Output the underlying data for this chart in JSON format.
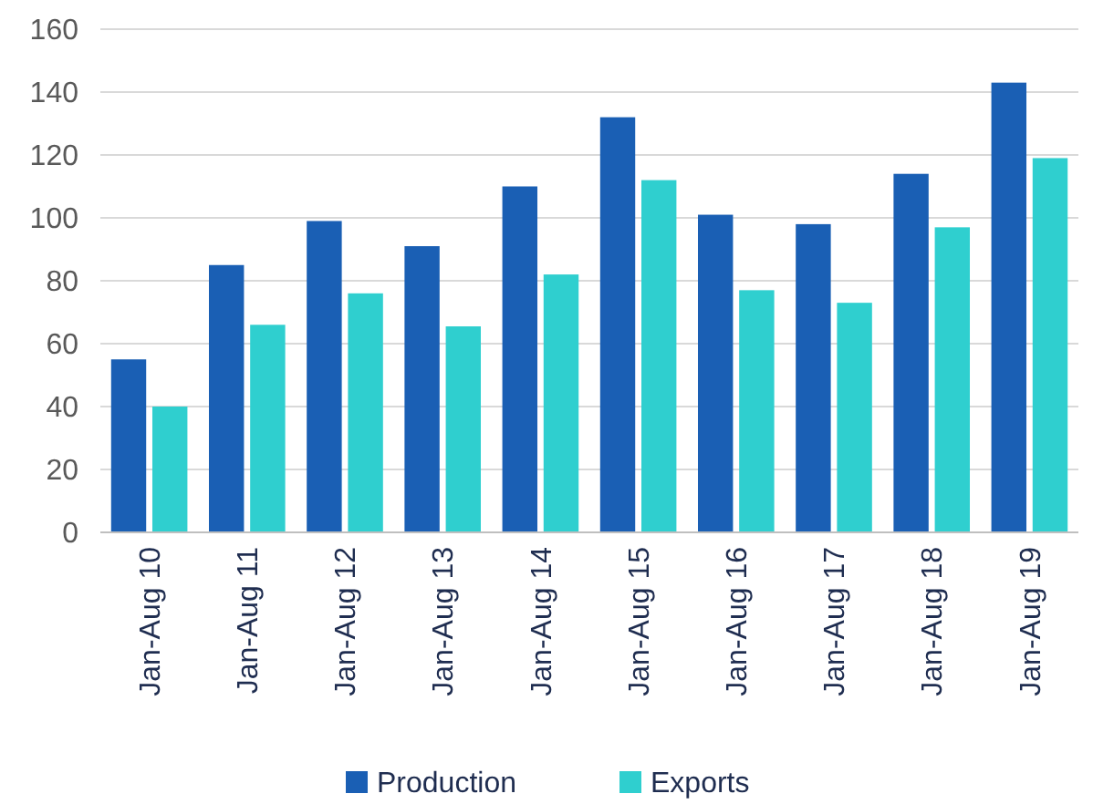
{
  "chart_data": {
    "type": "bar",
    "categories": [
      "Jan-Aug 10",
      "Jan-Aug 11",
      "Jan-Aug 12",
      "Jan-Aug 13",
      "Jan-Aug 14",
      "Jan-Aug 15",
      "Jan-Aug 16",
      "Jan-Aug 17",
      "Jan-Aug 18",
      "Jan-Aug 19"
    ],
    "series": [
      {
        "name": "Production",
        "color": "#1a5fb4",
        "values": [
          55,
          85,
          99,
          91,
          110,
          132,
          101,
          98,
          114,
          143
        ]
      },
      {
        "name": "Exports",
        "color": "#2fcfcf",
        "values": [
          40,
          66,
          76,
          65.5,
          82,
          112,
          77,
          73,
          97,
          119
        ]
      }
    ],
    "ylim": [
      0,
      160
    ],
    "yticks": [
      0,
      20,
      40,
      60,
      80,
      100,
      120,
      140,
      160
    ],
    "grid": "y",
    "legend": "bottom"
  }
}
